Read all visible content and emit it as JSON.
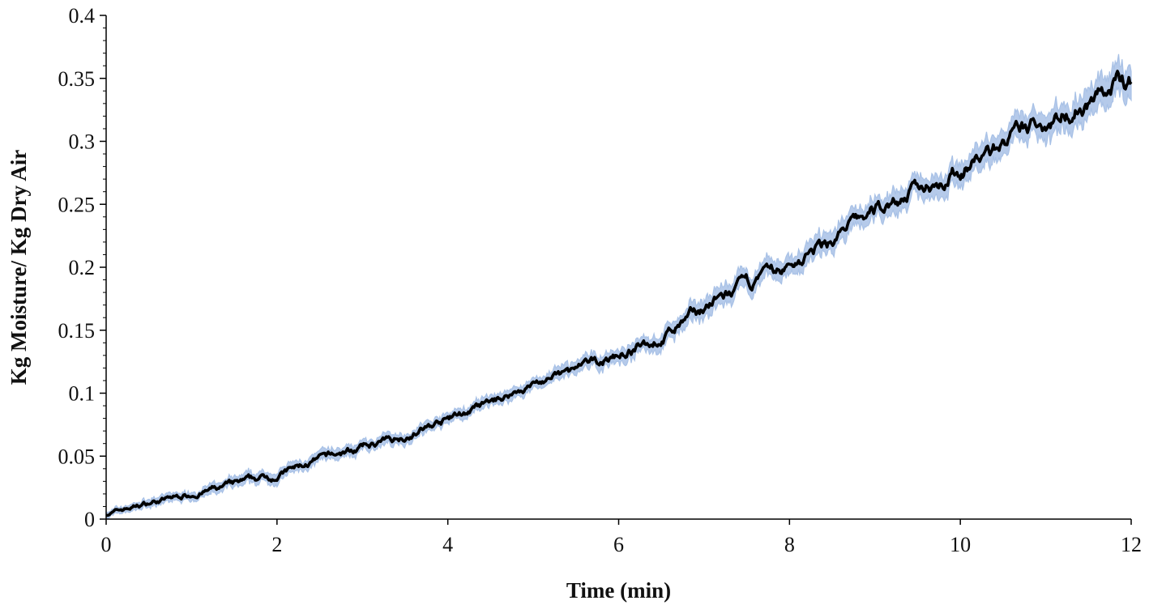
{
  "chart_data": {
    "type": "line",
    "title": "",
    "xlabel": "Time (min)",
    "ylabel": "Kg Moisture/ Kg Dry Air",
    "xlim": [
      0,
      12
    ],
    "ylim": [
      0,
      0.4
    ],
    "x_ticks": [
      0,
      2,
      4,
      6,
      8,
      10,
      12
    ],
    "x_tick_labels": [
      "0",
      "2",
      "4",
      "6",
      "8",
      "10",
      "12"
    ],
    "y_ticks": [
      0,
      0.05,
      0.1,
      0.15,
      0.2,
      0.25,
      0.3,
      0.35,
      0.4
    ],
    "y_tick_labels": [
      "0",
      "0.05",
      "0.1",
      "0.15",
      "0.2",
      "0.25",
      "0.3",
      "0.35",
      "0.4"
    ],
    "grid": false,
    "legend": "none",
    "series": [
      {
        "color": "#000000",
        "x": [
          0,
          0.5,
          1,
          1.5,
          2,
          2.5,
          3,
          3.5,
          4,
          4.5,
          5,
          5.5,
          6,
          6.5,
          7,
          7.5,
          8,
          8.5,
          9,
          9.5,
          10,
          10.5,
          11,
          11.5,
          12
        ],
        "y": [
          0.004,
          0.013,
          0.02,
          0.027,
          0.035,
          0.047,
          0.057,
          0.066,
          0.079,
          0.092,
          0.107,
          0.118,
          0.13,
          0.143,
          0.168,
          0.185,
          0.2,
          0.222,
          0.245,
          0.262,
          0.277,
          0.298,
          0.316,
          0.333,
          0.348
        ],
        "band_color": "#a8c1e6",
        "band_halfwidth": [
          0.002,
          0.003,
          0.003,
          0.004,
          0.004,
          0.004,
          0.004,
          0.004,
          0.004,
          0.004,
          0.004,
          0.005,
          0.005,
          0.006,
          0.007,
          0.007,
          0.007,
          0.008,
          0.008,
          0.008,
          0.009,
          0.009,
          0.01,
          0.011,
          0.012
        ]
      }
    ]
  }
}
